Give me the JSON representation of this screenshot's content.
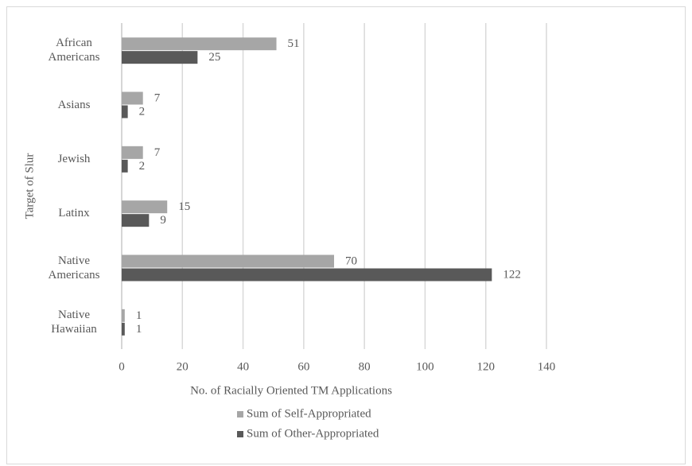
{
  "chart_data": {
    "type": "barh",
    "x_label": "No. of Racially Oriented TM Applications",
    "y_label": "Target of Slur",
    "categories": [
      "African Americans",
      "Asians",
      "Jewish",
      "Latinx",
      "Native Americans",
      "Native Hawaiian"
    ],
    "series": [
      {
        "name": "Sum of Self-Appropriated",
        "color": "#a6a6a6",
        "values": [
          51,
          7,
          7,
          15,
          70,
          1
        ]
      },
      {
        "name": "Sum of Other-Appropriated",
        "color": "#595959",
        "values": [
          25,
          2,
          2,
          9,
          122,
          1
        ]
      }
    ],
    "xlim": [
      0,
      140
    ],
    "xticks": [
      0,
      20,
      40,
      60,
      80,
      100,
      120,
      140
    ],
    "grid": true,
    "legend": "bottom"
  }
}
